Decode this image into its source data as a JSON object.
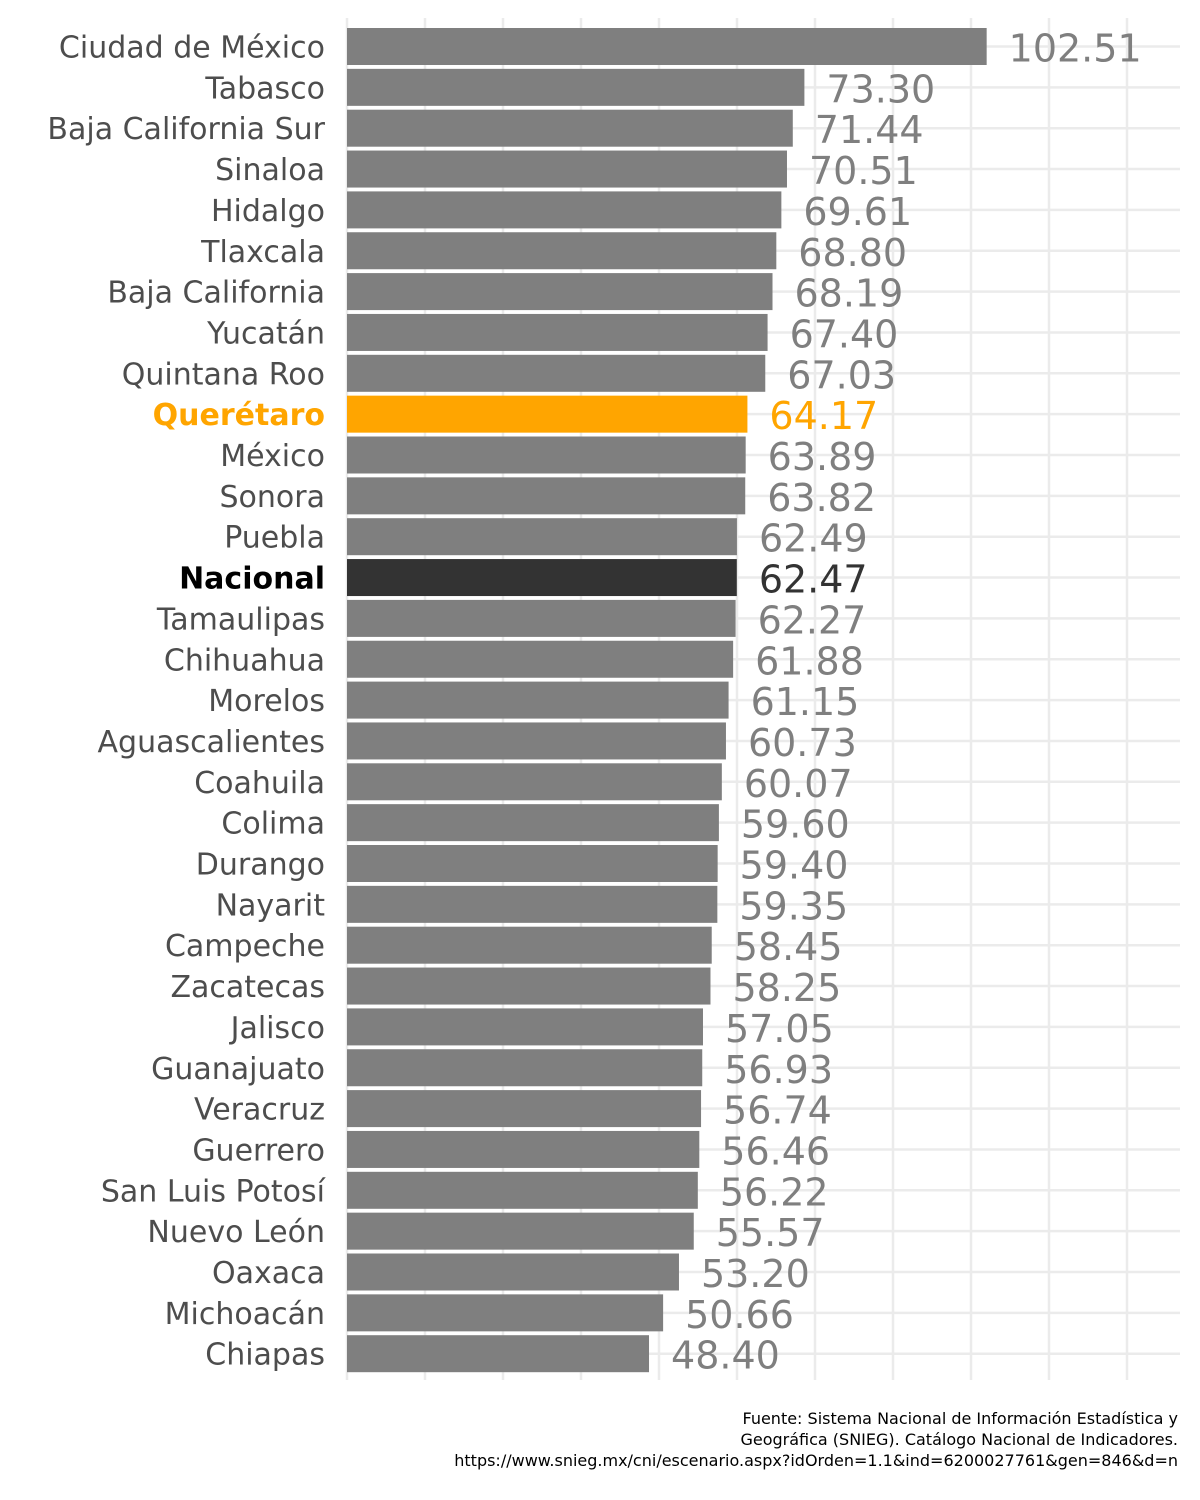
{
  "chart_data": {
    "type": "bar",
    "orientation": "horizontal",
    "categories": [
      "Ciudad de México",
      "Tabasco",
      "Baja California Sur",
      "Sinaloa",
      "Hidalgo",
      "Tlaxcala",
      "Baja California",
      "Yucatán",
      "Quintana Roo",
      "Querétaro",
      "México",
      "Sonora",
      "Puebla",
      "Nacional",
      "Tamaulipas",
      "Chihuahua",
      "Morelos",
      "Aguascalientes",
      "Coahuila",
      "Colima",
      "Durango",
      "Nayarit",
      "Campeche",
      "Zacatecas",
      "Jalisco",
      "Guanajuato",
      "Veracruz",
      "Guerrero",
      "San Luis Potosí",
      "Nuevo León",
      "Oaxaca",
      "Michoacán",
      "Chiapas"
    ],
    "values": [
      102.51,
      73.3,
      71.44,
      70.51,
      69.61,
      68.8,
      68.19,
      67.4,
      67.03,
      64.17,
      63.89,
      63.82,
      62.49,
      62.47,
      62.27,
      61.88,
      61.15,
      60.73,
      60.07,
      59.6,
      59.4,
      59.35,
      58.45,
      58.25,
      57.05,
      56.93,
      56.74,
      56.46,
      56.22,
      55.57,
      53.2,
      50.66,
      48.4
    ],
    "value_labels": [
      "102.51",
      "73.30",
      "71.44",
      "70.51",
      "69.61",
      "68.80",
      "68.19",
      "67.40",
      "67.03",
      "64.17",
      "63.89",
      "63.82",
      "62.49",
      "62.47",
      "62.27",
      "61.88",
      "61.15",
      "60.73",
      "60.07",
      "59.60",
      "59.40",
      "59.35",
      "58.45",
      "58.25",
      "57.05",
      "56.93",
      "56.74",
      "56.46",
      "56.22",
      "55.57",
      "53.20",
      "50.66",
      "48.40"
    ],
    "highlight": {
      "Querétaro": "#FFA500",
      "Nacional": "#333333"
    },
    "default_color": "#7F7F7F",
    "default_label_color": "#7F7F7F",
    "category_label_color": "#4D4D4D",
    "xlim": [
      0,
      125
    ],
    "grid": true,
    "title": "",
    "xlabel": "",
    "ylabel": ""
  },
  "caption": {
    "lines": [
      "Fuente: Sistema Nacional de Información Estadística y",
      "Geográfica (SNIEG). Catálogo Nacional de Indicadores.",
      "https://www.snieg.mx/cni/escenario.aspx?idOrden=1.1&ind=6200027761&gen=846&d=n"
    ]
  }
}
